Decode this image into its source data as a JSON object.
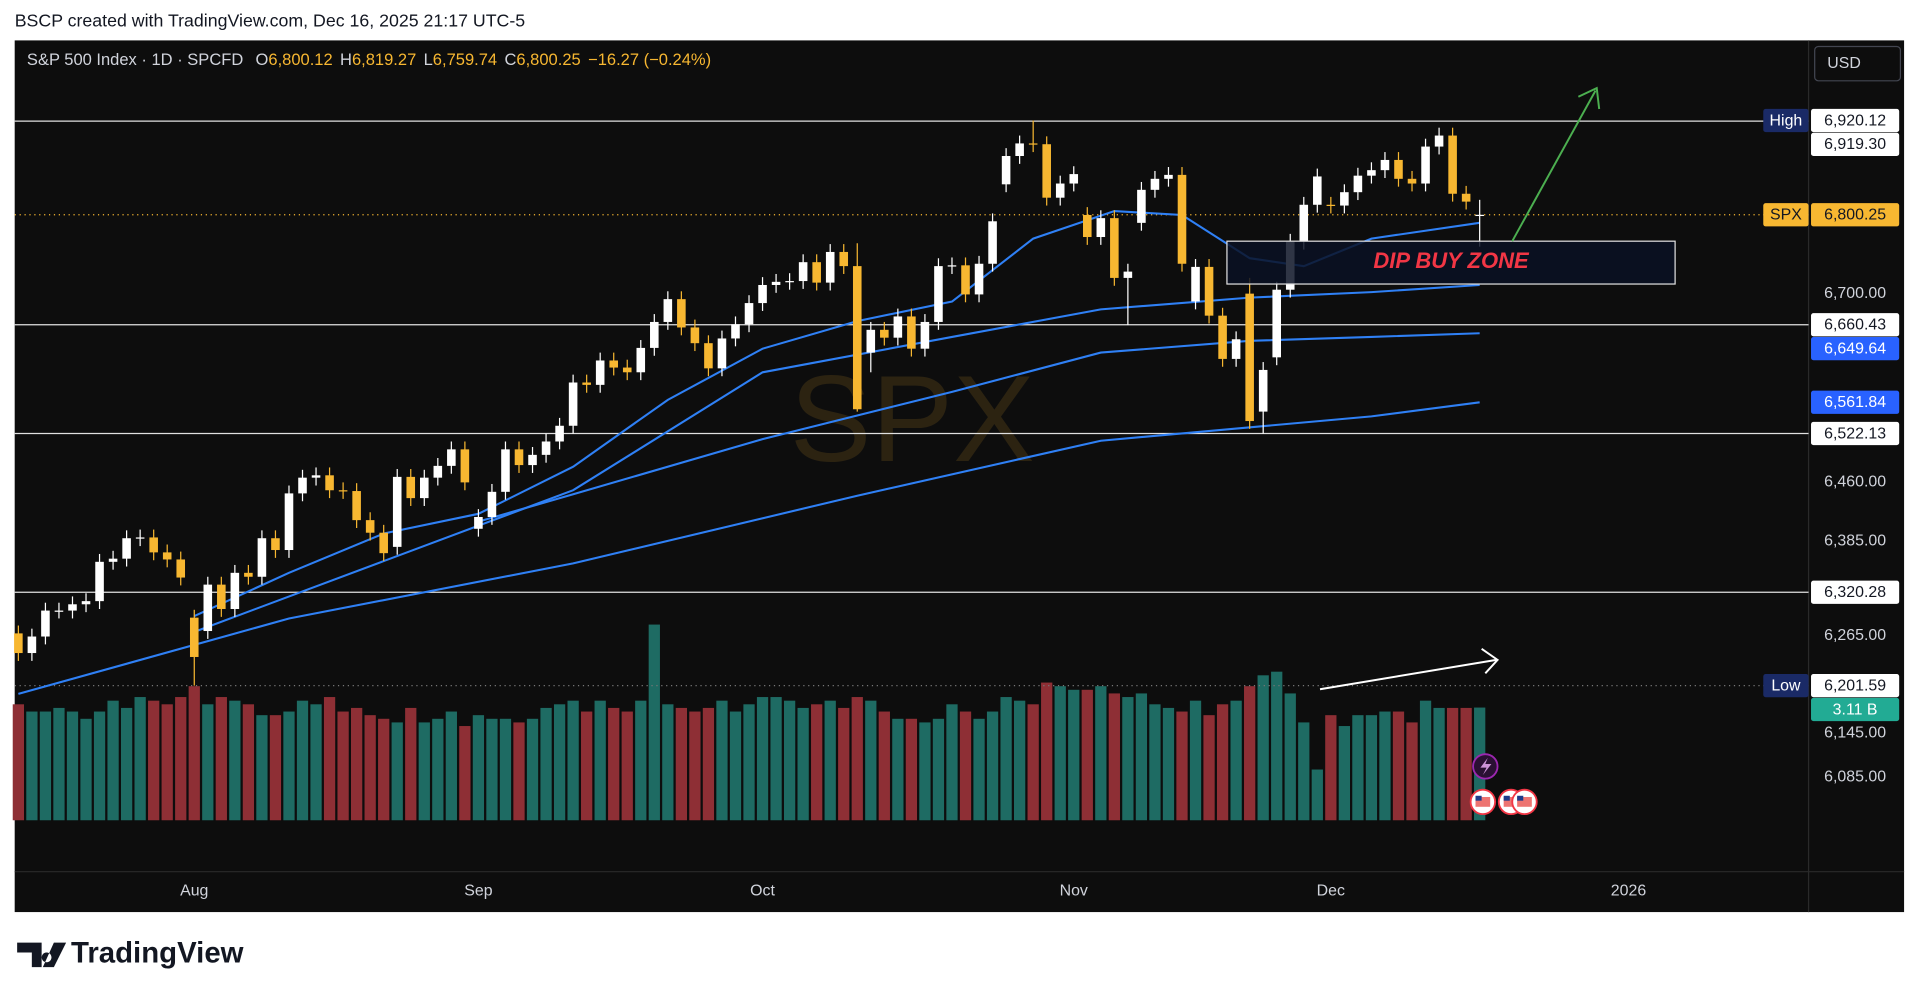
{
  "header": {
    "text": "BSCP created with TradingView.com, Dec 16, 2025 21:17 UTC-5"
  },
  "chart_data": {
    "type": "candlestick",
    "legend": {
      "title": "S&P 500 Index · 1D · SPCFD",
      "items": [
        {
          "key": "O",
          "value": "6,800.12"
        },
        {
          "key": "H",
          "value": "6,819.27"
        },
        {
          "key": "L",
          "value": "6,759.74"
        },
        {
          "key": "C",
          "value": "6,800.25"
        }
      ],
      "change": "−16.27 (−0.24%)"
    },
    "watermark": "SPX",
    "currency": "USD",
    "xtick_labels": [
      "Aug",
      "Sep",
      "Oct",
      "Nov",
      "Dec",
      "2026"
    ],
    "open": [
      6268,
      6243,
      6264,
      6297,
      6297,
      6305,
      6309,
      6359,
      6363,
      6389,
      6390,
      6371,
      6362,
      6288,
      6271,
      6330,
      6299,
      6345,
      6340,
      6389,
      6374,
      6446,
      6466,
      6469,
      6450,
      6449,
      6412,
      6396,
      6378,
      6467,
      6440,
      6466,
      6481,
      6502,
      6401,
      6416,
      6448,
      6502,
      6482,
      6495,
      6512,
      6532,
      6587,
      6584,
      6615,
      6606,
      6600,
      6631,
      6664,
      6693,
      6657,
      6637,
      6605,
      6643,
      6661,
      6688,
      6711,
      6715,
      6716,
      6740,
      6714,
      6753,
      6735,
      6625,
      6654,
      6644,
      6671,
      6630,
      6664,
      6735,
      6736,
      6699,
      6738,
      6839,
      6875,
      6891,
      6890,
      6822,
      6840,
      6800,
      6772,
      6796,
      6720,
      6790,
      6832,
      6846,
      6851,
      6690,
      6734,
      6672,
      6617,
      6700,
      6550,
      6619,
      6705,
      6766,
      6813,
      6813,
      6812,
      6829,
      6850,
      6857,
      6870,
      6846,
      6840,
      6887,
      6901,
      6827,
      6800.12
    ],
    "high": [
      6278,
      6274,
      6307,
      6307,
      6315,
      6319,
      6369,
      6373,
      6399,
      6400,
      6400,
      6381,
      6372,
      6298,
      6340,
      6340,
      6355,
      6355,
      6399,
      6399,
      6456,
      6476,
      6479,
      6479,
      6460,
      6459,
      6422,
      6406,
      6477,
      6477,
      6476,
      6491,
      6512,
      6512,
      6426,
      6458,
      6512,
      6512,
      6505,
      6522,
      6542,
      6597,
      6597,
      6625,
      6625,
      6616,
      6641,
      6674,
      6703,
      6703,
      6667,
      6647,
      6653,
      6671,
      6698,
      6721,
      6725,
      6726,
      6750,
      6750,
      6763,
      6763,
      6764,
      6664,
      6664,
      6681,
      6681,
      6674,
      6745,
      6746,
      6746,
      6748,
      6802,
      6885,
      6901,
      6920.12,
      6900,
      6850,
      6862,
      6810,
      6806,
      6806,
      6738,
      6842,
      6856,
      6861,
      6861,
      6744,
      6744,
      6682,
      6652,
      6720,
      6613,
      6715,
      6776,
      6823,
      6859,
      6823,
      6839,
      6860,
      6867,
      6880,
      6880,
      6856,
      6897,
      6911,
      6911,
      6837,
      6819.27
    ],
    "low": [
      6233,
      6233,
      6254,
      6287,
      6287,
      6295,
      6299,
      6349,
      6353,
      6379,
      6361,
      6352,
      6329,
      6201.59,
      6261,
      6289,
      6289,
      6330,
      6330,
      6364,
      6364,
      6436,
      6456,
      6440,
      6439,
      6402,
      6386,
      6360,
      6368,
      6430,
      6430,
      6456,
      6471,
      6450,
      6391,
      6406,
      6438,
      6472,
      6472,
      6485,
      6502,
      6522,
      6574,
      6574,
      6596,
      6590,
      6590,
      6621,
      6654,
      6647,
      6627,
      6595,
      6595,
      6633,
      6651,
      6678,
      6701,
      6705,
      6706,
      6704,
      6704,
      6725,
      6550,
      6600,
      6634,
      6634,
      6620,
      6620,
      6654,
      6725,
      6689,
      6689,
      6728,
      6829,
      6865,
      6880,
      6812,
      6812,
      6830,
      6762,
      6762,
      6710,
      6660,
      6780,
      6822,
      6836,
      6728,
      6680,
      6662,
      6607,
      6607,
      6528,
      6521.94,
      6609,
      6695,
      6756,
      6803,
      6802,
      6802,
      6819,
      6840,
      6847,
      6836,
      6830,
      6830,
      6877,
      6817,
      6807,
      6759.74
    ],
    "close": [
      6243,
      6264,
      6297,
      6297,
      6305,
      6309,
      6359,
      6363,
      6389,
      6390,
      6371,
      6362,
      6339,
      6238,
      6330,
      6299,
      6345,
      6340,
      6389,
      6374,
      6446,
      6466,
      6469,
      6450,
      6449,
      6412,
      6396,
      6370,
      6467,
      6440,
      6466,
      6481,
      6502,
      6460,
      6416,
      6448,
      6502,
      6482,
      6495,
      6512,
      6532,
      6587,
      6584,
      6615,
      6606,
      6600,
      6631,
      6664,
      6693,
      6657,
      6637,
      6605,
      6643,
      6661,
      6688,
      6711,
      6715,
      6716,
      6740,
      6714,
      6753,
      6735,
      6553,
      6654,
      6644,
      6671,
      6630,
      6664,
      6735,
      6736,
      6699,
      6738,
      6792,
      6875,
      6891,
      6890,
      6822,
      6840,
      6852,
      6772,
      6796,
      6720,
      6728,
      6832,
      6846,
      6851,
      6738,
      6734,
      6672,
      6617,
      6642,
      6538,
      6603,
      6705,
      6766,
      6813,
      6849,
      6812,
      6829,
      6850,
      6857,
      6870,
      6846,
      6840,
      6887,
      6901,
      6827,
      6817,
      6800.25
    ],
    "up_color": "#ffffff",
    "down_color": "#f7b731",
    "volume": {
      "values": [
        3.2,
        3.0,
        3.0,
        3.1,
        3.0,
        2.8,
        3.0,
        3.3,
        3.1,
        3.4,
        3.3,
        3.2,
        3.4,
        3.7,
        3.2,
        3.4,
        3.3,
        3.2,
        2.9,
        2.9,
        3.0,
        3.3,
        3.2,
        3.4,
        3.0,
        3.1,
        2.9,
        2.8,
        2.7,
        3.1,
        2.7,
        2.8,
        3.0,
        2.6,
        2.9,
        2.8,
        2.8,
        2.7,
        2.8,
        3.1,
        3.2,
        3.3,
        3.0,
        3.3,
        3.1,
        3.0,
        3.3,
        5.4,
        3.2,
        3.1,
        3.0,
        3.1,
        3.3,
        3.0,
        3.2,
        3.4,
        3.4,
        3.3,
        3.1,
        3.2,
        3.3,
        3.1,
        3.4,
        3.3,
        3.0,
        2.8,
        2.8,
        2.7,
        2.8,
        3.2,
        3.0,
        2.8,
        3.0,
        3.4,
        3.3,
        3.2,
        3.8,
        3.7,
        3.6,
        3.6,
        3.7,
        3.5,
        3.4,
        3.5,
        3.2,
        3.1,
        3.0,
        3.3,
        2.9,
        3.2,
        3.3,
        3.7,
        4.0,
        4.1,
        3.5,
        2.7,
        1.4,
        2.9,
        2.6,
        2.9,
        2.9,
        3.0,
        3.0,
        2.7,
        3.3,
        3.1,
        3.1,
        3.1,
        3.11
      ],
      "up_color": "#1e6b63",
      "down_color": "#8e2f35",
      "label": "3.11 B"
    },
    "moving_averages": [
      {
        "color": "#2f80f5",
        "x": [
          13,
          20,
          27,
          34,
          41,
          48,
          55,
          62,
          69,
          75,
          81,
          86,
          91,
          95,
          100,
          108
        ],
        "values": [
          6290,
          6345,
          6395,
          6420,
          6480,
          6565,
          6630,
          6665,
          6690,
          6770,
          6805,
          6800,
          6745,
          6735,
          6770,
          6790
        ]
      },
      {
        "color": "#2f80f5",
        "x": [
          13,
          27,
          41,
          55,
          69,
          80,
          91,
          100,
          108
        ],
        "values": [
          6270,
          6360,
          6450,
          6600,
          6645,
          6680,
          6695,
          6702,
          6711
        ]
      },
      {
        "color": "#2f80f5",
        "x": [
          34,
          41,
          55,
          69,
          80,
          91,
          100,
          108
        ],
        "values": [
          6410,
          6445,
          6515,
          6575,
          6625,
          6640,
          6645,
          6649.64
        ],
        "last_label": "6,649.64"
      },
      {
        "color": "#2f80f5",
        "x": [
          0,
          20,
          41,
          62,
          80,
          100,
          108
        ],
        "values": [
          6191,
          6287,
          6357,
          6443,
          6513,
          6544,
          6561.84
        ],
        "last_label": "6,561.84"
      }
    ],
    "ylim": [
      5965,
      7022
    ],
    "yticks": [
      {
        "value": 6700,
        "label": "6,700.00"
      },
      {
        "value": 6460,
        "label": "6,460.00"
      },
      {
        "value": 6385,
        "label": "6,385.00"
      },
      {
        "value": 6265,
        "label": "6,265.00"
      },
      {
        "value": 6145,
        "label": "6,145.00"
      },
      {
        "value": 6085,
        "label": "6,085.00"
      }
    ],
    "hlines": [
      {
        "value": 6919.3,
        "label": "6,919.30"
      },
      {
        "value": 6660.43,
        "label": "6,660.43"
      },
      {
        "value": 6522.13,
        "label": "6,522.13"
      },
      {
        "value": 6320.28,
        "label": "6,320.28"
      }
    ],
    "last_price": {
      "value": 6800.25,
      "label": "6,800.25",
      "tag": "SPX"
    },
    "range_high": {
      "value": 6920.12,
      "label": "6,920.12",
      "tag": "High"
    },
    "range_low": {
      "value": 6201.59,
      "label": "6,201.59",
      "tag": "Low"
    },
    "annotation": "DIP BUY ZONE"
  },
  "footer": {
    "logo": "TradingView"
  }
}
